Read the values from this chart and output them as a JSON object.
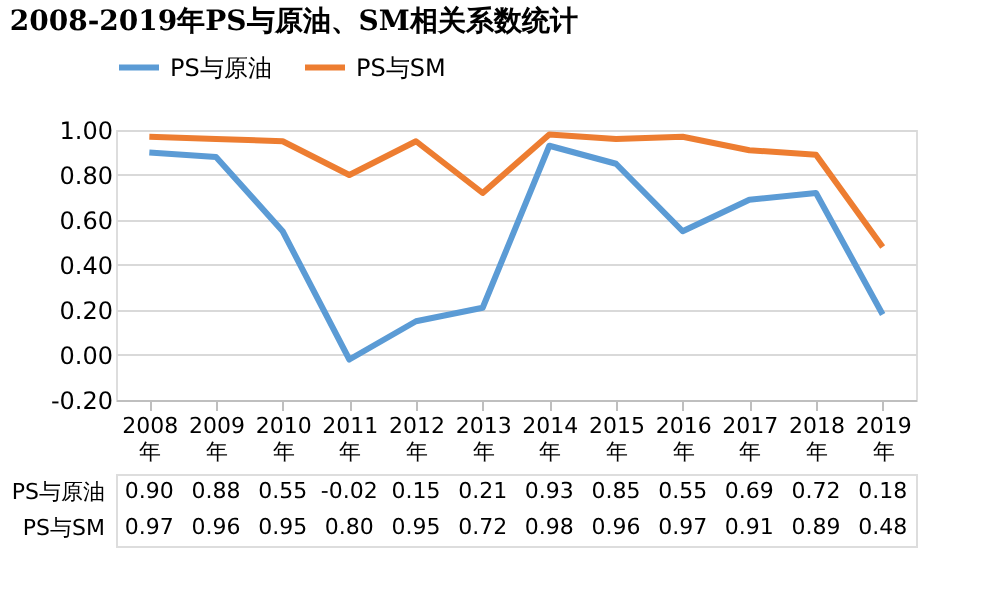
{
  "chart_data": {
    "type": "line",
    "title": "2008-2019年PS与原油、SM相关系数统计",
    "categories": [
      "2008年",
      "2009年",
      "2010年",
      "2011年",
      "2012年",
      "2013年",
      "2014年",
      "2015年",
      "2016年",
      "2017年",
      "2018年",
      "2019年"
    ],
    "series": [
      {
        "name": "PS与原油",
        "color": "#5b9bd5",
        "values": [
          0.9,
          0.88,
          0.55,
          -0.02,
          0.15,
          0.21,
          0.93,
          0.85,
          0.55,
          0.69,
          0.72,
          0.18
        ],
        "value_labels": [
          "0.90",
          "0.88",
          "0.55",
          "-0.02",
          "0.15",
          "0.21",
          "0.93",
          "0.85",
          "0.55",
          "0.69",
          "0.72",
          "0.18"
        ]
      },
      {
        "name": "PS与SM",
        "color": "#ed7d31",
        "values": [
          0.97,
          0.96,
          0.95,
          0.8,
          0.95,
          0.72,
          0.98,
          0.96,
          0.97,
          0.91,
          0.89,
          0.48
        ],
        "value_labels": [
          "0.97",
          "0.96",
          "0.95",
          "0.80",
          "0.95",
          "0.72",
          "0.98",
          "0.96",
          "0.97",
          "0.91",
          "0.89",
          "0.48"
        ]
      }
    ],
    "ylim": [
      -0.2,
      1.0
    ],
    "yticks": [
      {
        "value": -0.2,
        "label": "-0.20"
      },
      {
        "value": 0,
        "label": "0.00"
      },
      {
        "value": 0.2,
        "label": "0.20"
      },
      {
        "value": 0.4,
        "label": "0.40"
      },
      {
        "value": 0.6,
        "label": "0.60"
      },
      {
        "value": 0.8,
        "label": "0.80"
      },
      {
        "value": 1.0,
        "label": "1.00"
      }
    ],
    "grid": "y",
    "legend": "top",
    "marker": "none",
    "line_style": "solid"
  }
}
